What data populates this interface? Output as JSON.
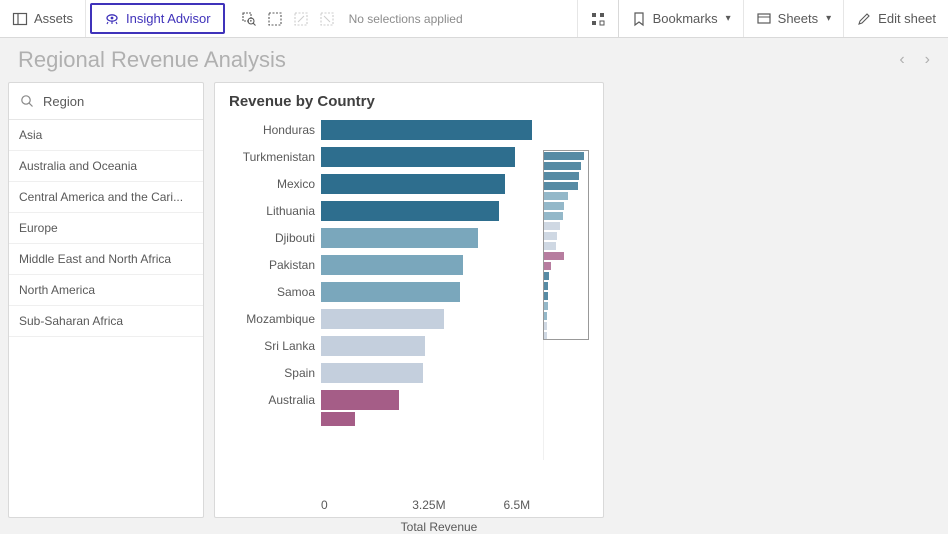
{
  "toolbar": {
    "assets_label": "Assets",
    "insight_label": "Insight Advisor",
    "no_selections": "No selections applied",
    "bookmarks_label": "Bookmarks",
    "sheets_label": "Sheets",
    "edit_label": "Edit sheet"
  },
  "page": {
    "title": "Regional Revenue Analysis"
  },
  "filter": {
    "header": "Region",
    "items": [
      "Asia",
      "Australia and Oceania",
      "Central America and the Cari...",
      "Europe",
      "Middle East and North Africa",
      "North America",
      "Sub-Saharan Africa"
    ]
  },
  "chart": {
    "type": "bar-horizontal",
    "title": "Revenue by Country",
    "x_label": "Total Revenue",
    "x_ticks": [
      "0",
      "3.25M",
      "6.5M"
    ],
    "x_max": 6.5,
    "label_fontsize": 12,
    "title_fontsize": 15,
    "background_color": "#ffffff",
    "colors": {
      "dark_teal": "#2e6e8e",
      "mid_teal": "#7aa7bc",
      "light_blue": "#c4cfdd",
      "plum": "#a55d87"
    },
    "bars": [
      {
        "label": "Honduras",
        "value": 6.6,
        "color": "#2e6e8e"
      },
      {
        "label": "Turkmenistan",
        "value": 6.05,
        "color": "#2e6e8e"
      },
      {
        "label": "Mexico",
        "value": 5.75,
        "color": "#2e6e8e"
      },
      {
        "label": "Lithuania",
        "value": 5.55,
        "color": "#2e6e8e"
      },
      {
        "label": "Djibouti",
        "value": 4.9,
        "color": "#7aa7bc"
      },
      {
        "label": "Pakistan",
        "value": 4.45,
        "color": "#7aa7bc"
      },
      {
        "label": "Samoa",
        "value": 4.35,
        "color": "#7aa7bc"
      },
      {
        "label": "Mozambique",
        "value": 3.85,
        "color": "#c4cfdd"
      },
      {
        "label": "Sri Lanka",
        "value": 3.25,
        "color": "#c4cfdd"
      },
      {
        "label": "Spain",
        "value": 3.2,
        "color": "#c4cfdd"
      },
      {
        "label": "Australia",
        "value": 2.45,
        "color": "#a55d87"
      },
      {
        "label": "",
        "value": 1.05,
        "color": "#a55d87",
        "partial": true
      }
    ],
    "minimap": [
      {
        "w": 1.0,
        "c": "#2e6e8e"
      },
      {
        "w": 0.92,
        "c": "#2e6e8e"
      },
      {
        "w": 0.87,
        "c": "#2e6e8e"
      },
      {
        "w": 0.84,
        "c": "#2e6e8e"
      },
      {
        "w": 0.6,
        "c": "#7aa7bc"
      },
      {
        "w": 0.5,
        "c": "#7aa7bc"
      },
      {
        "w": 0.48,
        "c": "#7aa7bc"
      },
      {
        "w": 0.4,
        "c": "#c4cfdd"
      },
      {
        "w": 0.32,
        "c": "#c4cfdd"
      },
      {
        "w": 0.3,
        "c": "#c4cfdd"
      },
      {
        "w": 0.5,
        "c": "#a55d87"
      },
      {
        "w": 0.18,
        "c": "#a55d87"
      },
      {
        "w": 0.12,
        "c": "#2e6e8e"
      },
      {
        "w": 0.1,
        "c": "#2e6e8e"
      },
      {
        "w": 0.09,
        "c": "#2e6e8e"
      },
      {
        "w": 0.09,
        "c": "#7aa7bc"
      },
      {
        "w": 0.08,
        "c": "#7aa7bc"
      },
      {
        "w": 0.08,
        "c": "#c4cfdd"
      },
      {
        "w": 0.07,
        "c": "#c4cfdd"
      }
    ]
  }
}
